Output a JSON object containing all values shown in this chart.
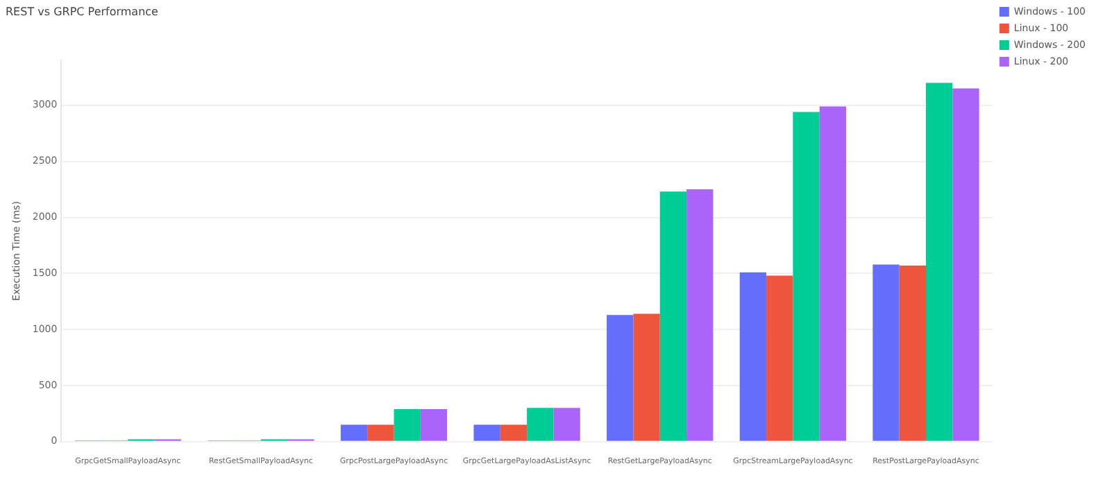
{
  "chart_data": {
    "type": "bar",
    "title": "REST vs GRPC Performance",
    "ylabel": "Execution Time (ms)",
    "categories": [
      "GrpcGetSmallPayloadAsync",
      "RestGetSmallPayloadAsync",
      "GrpcPostLargePayloadAsync",
      "GrpcGetLargePayloadAsListAsync",
      "RestGetLargePayloadAsync",
      "GrpcStreamLargePayloadAsync",
      "RestPostLargePayloadAsync"
    ],
    "series": [
      {
        "name": "Windows - 100",
        "color": "#636efa",
        "values": [
          10,
          10,
          150,
          150,
          1130,
          1510,
          1580
        ]
      },
      {
        "name": "Linux - 100",
        "color": "#ef553b",
        "values": [
          10,
          10,
          150,
          150,
          1140,
          1480,
          1570
        ]
      },
      {
        "name": "Windows - 200",
        "color": "#00cc96",
        "values": [
          20,
          20,
          290,
          300,
          2230,
          2940,
          3200
        ]
      },
      {
        "name": "Linux - 200",
        "color": "#ab63fa",
        "values": [
          20,
          20,
          290,
          300,
          2250,
          2990,
          3150
        ]
      }
    ],
    "ylim": [
      0,
      3400
    ],
    "yticks": [
      0,
      500,
      1000,
      1500,
      2000,
      2500,
      3000
    ],
    "grid": "y",
    "legend": "top right"
  }
}
